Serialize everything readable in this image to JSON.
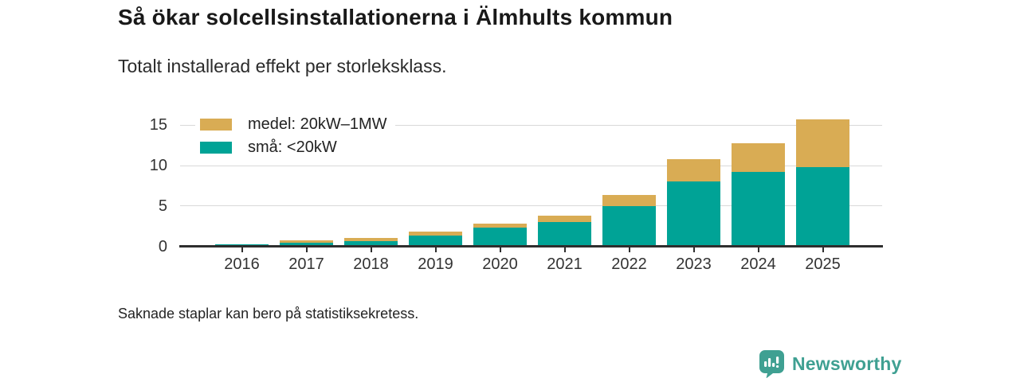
{
  "header": {
    "title": "Så ökar solcellsinstallationerna i Älmhults kommun",
    "subtitle": "Totalt installerad effekt per storleksklass."
  },
  "footer": {
    "note": "Saknade staplar kan bero på statistiksekretess."
  },
  "branding": {
    "name": "Newsworthy",
    "color": "#3fa092",
    "icon": "bar-chart-speech-bubble-icon"
  },
  "colors": {
    "small_series": "#00a396",
    "medium_series": "#d9ac54",
    "axis": "#2e2e2e",
    "gridline": "#d9d9d9"
  },
  "chart_data": {
    "type": "bar",
    "stacked": true,
    "title": "Så ökar solcellsinstallationerna i Älmhults kommun",
    "subtitle": "Totalt installerad effekt per storleksklass.",
    "xlabel": "",
    "ylabel": "",
    "categories": [
      "2016",
      "2017",
      "2018",
      "2019",
      "2020",
      "2021",
      "2022",
      "2023",
      "2024",
      "2025"
    ],
    "series": [
      {
        "name": "små: <20kW",
        "color": "#00a396",
        "values": [
          0.2,
          0.45,
          0.65,
          1.3,
          2.35,
          3.0,
          5.0,
          8.0,
          9.2,
          9.85
        ]
      },
      {
        "name": "medel: 20kW–1MW",
        "color": "#d9ac54",
        "values": [
          0.0,
          0.25,
          0.35,
          0.5,
          0.5,
          0.75,
          1.4,
          2.8,
          3.55,
          5.85
        ]
      }
    ],
    "legend_order": [
      1,
      0
    ],
    "legend_position": "top-left",
    "grid": "horizontal",
    "ylim": [
      0,
      16
    ],
    "yticks": [
      0,
      5,
      10,
      15
    ]
  }
}
